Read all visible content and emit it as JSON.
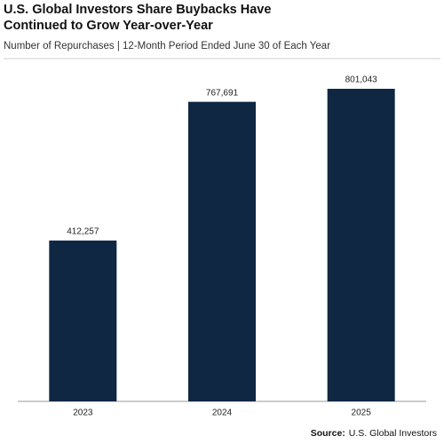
{
  "chart_data": {
    "type": "bar",
    "title": "U.S. Global Investors Share Buybacks Have Continued to Grow Year-over-Year",
    "subtitle": "Number of Repurchases | 12-Month Period Ended June 30 of Each Year",
    "categories": [
      "2023",
      "2024",
      "2025"
    ],
    "values": [
      412257,
      767691,
      801043
    ],
    "value_labels": [
      "412,257",
      "767,691",
      "801,043"
    ],
    "color": "#0f2742",
    "source_label": "Source:",
    "source": "U.S. Global Investors"
  }
}
